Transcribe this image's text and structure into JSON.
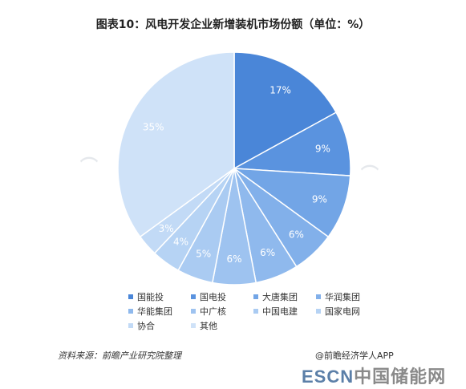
{
  "title": "图表10：风电开发企业新增装机市场份额（单位：%）",
  "chart_data": {
    "type": "pie",
    "title": "图表10：风电开发企业新增装机市场份额（单位：%）",
    "unit": "%",
    "slices": [
      {
        "name": "国能投",
        "value": 17,
        "label": "17%",
        "color": "#4a86d8"
      },
      {
        "name": "国电投",
        "value": 9,
        "label": "9%",
        "color": "#5a93df"
      },
      {
        "name": "大唐集团",
        "value": 9,
        "label": "9%",
        "color": "#72a5e6"
      },
      {
        "name": "华润集团",
        "value": 6,
        "label": "6%",
        "color": "#82b0ea"
      },
      {
        "name": "华能集团",
        "value": 6,
        "label": "6%",
        "color": "#8fb9ed"
      },
      {
        "name": "中广核",
        "value": 6,
        "label": "6%",
        "color": "#9ec3f0"
      },
      {
        "name": "中国电建",
        "value": 5,
        "label": "5%",
        "color": "#aacbf2"
      },
      {
        "name": "国家电网",
        "value": 4,
        "label": "4%",
        "color": "#b6d3f4"
      },
      {
        "name": "协合",
        "value": 3,
        "label": "3%",
        "color": "#c2daf6"
      },
      {
        "name": "其他",
        "value": 35,
        "label": "35%",
        "color": "#cfe2f8"
      }
    ],
    "legend_position": "bottom"
  },
  "source": "资料来源：前瞻产业研究院整理",
  "credit": "@前瞻经济学人APP",
  "watermark": {
    "en": "ESCN",
    "cn": "中国储能网"
  }
}
